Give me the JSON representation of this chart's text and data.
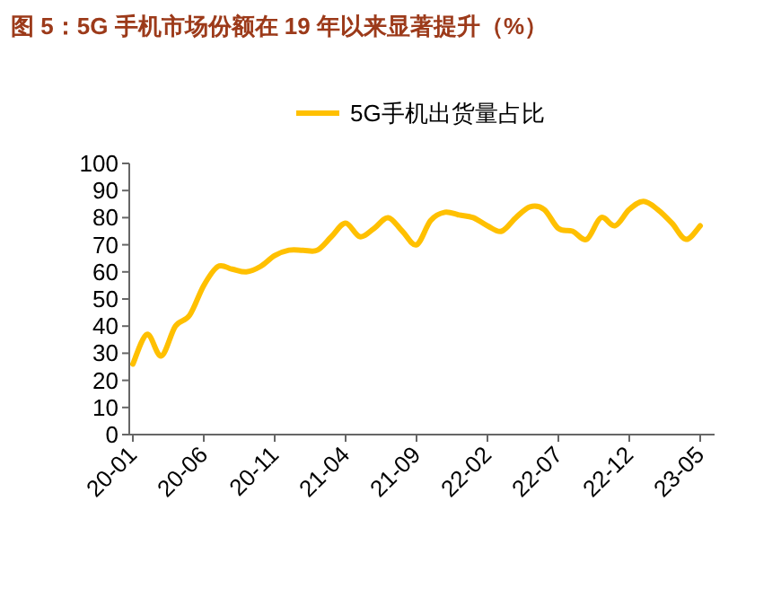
{
  "chart_data": {
    "type": "line",
    "title": "图 5：5G 手机市场份额在 19 年以来显著提升（%）",
    "categories": [
      "20-01",
      null,
      null,
      null,
      null,
      "20-06",
      null,
      null,
      null,
      null,
      "20-11",
      null,
      null,
      null,
      null,
      "21-04",
      null,
      null,
      null,
      null,
      "21-09",
      null,
      null,
      null,
      null,
      "22-02",
      null,
      null,
      null,
      null,
      "22-07",
      null,
      null,
      null,
      null,
      "22-12",
      null,
      null,
      null,
      null,
      "23-05"
    ],
    "series": [
      {
        "name": "5G手机出货量占比",
        "color": "#ffc000",
        "values": [
          26,
          37,
          29,
          40,
          44,
          55,
          62,
          61,
          60,
          62,
          66,
          68,
          68,
          68,
          73,
          78,
          73,
          76,
          80,
          75,
          70,
          79,
          82,
          81,
          80,
          77,
          75,
          80,
          84,
          83,
          76,
          75,
          72,
          80,
          77,
          83,
          86,
          83,
          78,
          72,
          77
        ]
      }
    ],
    "ylim": [
      0,
      100
    ],
    "yticks": [
      0,
      10,
      20,
      30,
      40,
      50,
      60,
      70,
      80,
      90,
      100
    ],
    "legend": "top"
  }
}
